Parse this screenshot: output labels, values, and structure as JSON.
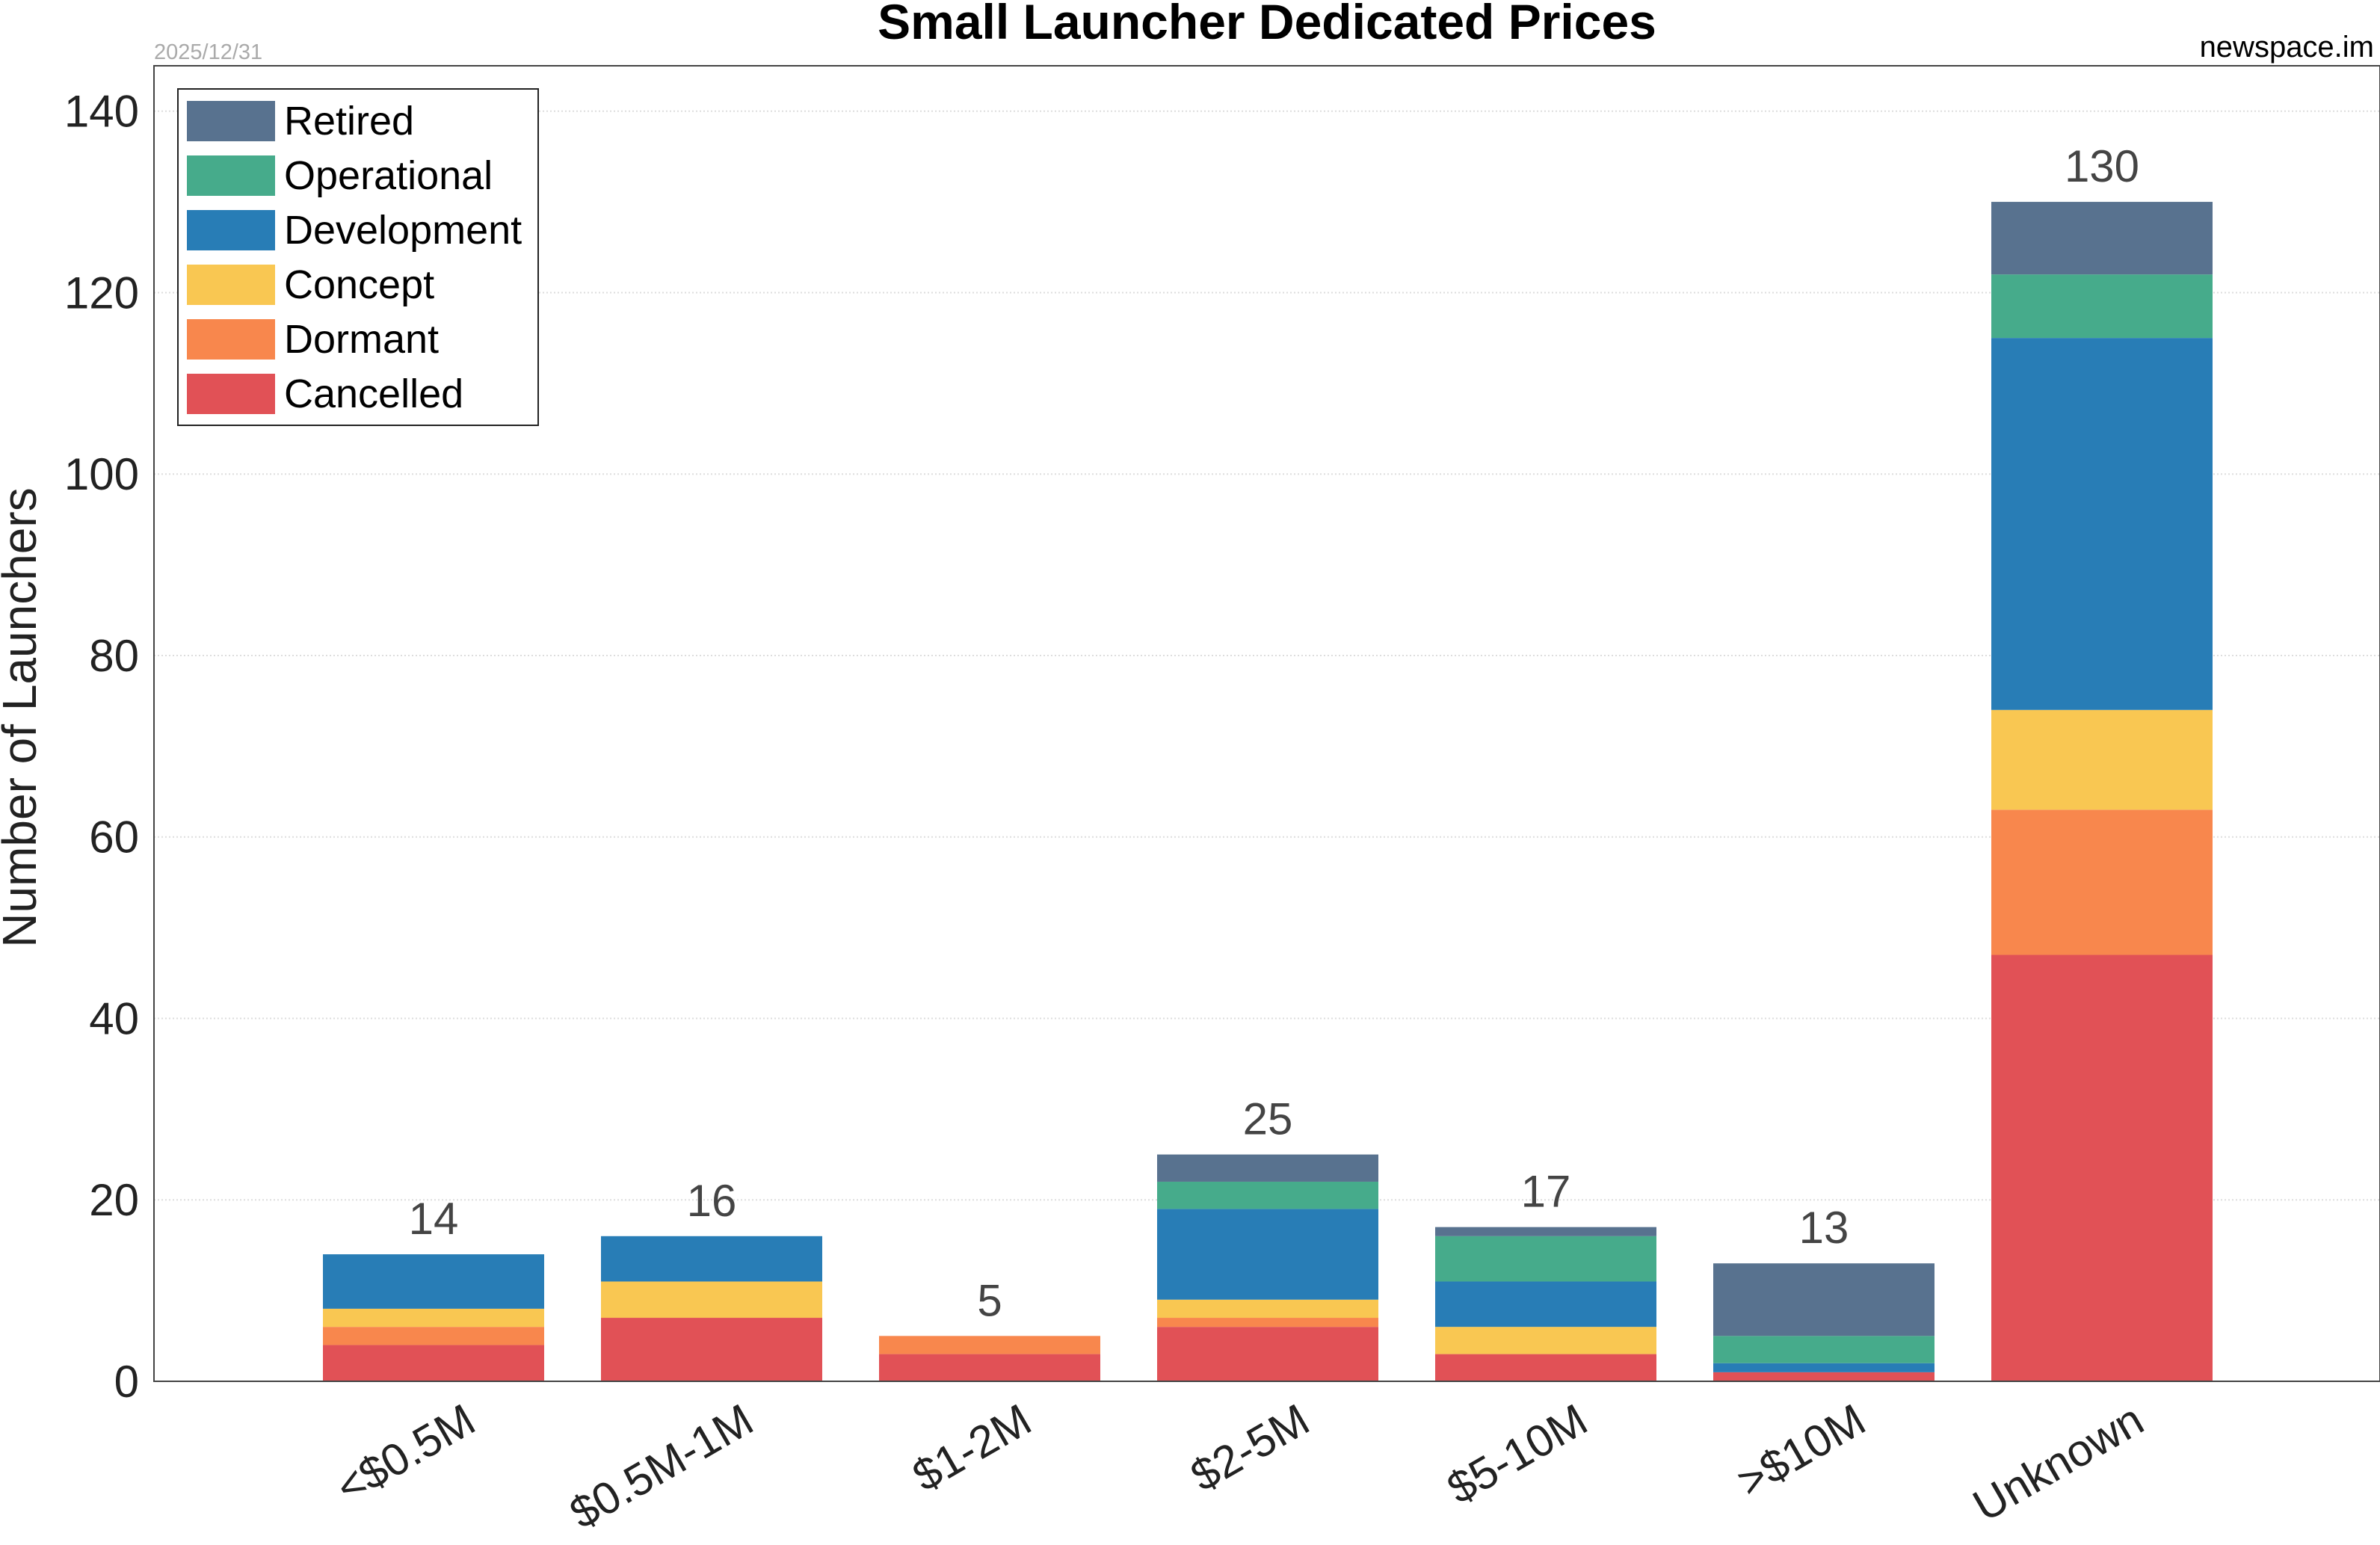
{
  "chart_data": {
    "type": "bar",
    "stacked": true,
    "title": "Small Launcher Dedicated Prices",
    "date": "2025/12/31",
    "source": "newspace.im",
    "xlabel": "",
    "ylabel": "Number of Launchers",
    "ylim": [
      0,
      145
    ],
    "yticks": [
      0,
      20,
      40,
      60,
      80,
      100,
      120,
      140
    ],
    "grid": true,
    "legend_position": "top-left",
    "categories": [
      "<$0.5M",
      "$0.5M-1M",
      "$1-2M",
      "$2-5M",
      "$5-10M",
      ">$10M",
      "Unknown"
    ],
    "totals": [
      14,
      16,
      5,
      25,
      17,
      13,
      130
    ],
    "series": [
      {
        "name": "Cancelled",
        "color": "#e15156",
        "values": [
          4,
          7,
          3,
          6,
          3,
          1,
          47
        ]
      },
      {
        "name": "Dormant",
        "color": "#f8874d",
        "values": [
          2,
          0,
          2,
          1,
          0,
          0,
          16
        ]
      },
      {
        "name": "Concept",
        "color": "#f9c752",
        "values": [
          2,
          4,
          0,
          2,
          3,
          0,
          11
        ]
      },
      {
        "name": "Development",
        "color": "#287db6",
        "values": [
          6,
          5,
          0,
          10,
          5,
          1,
          41
        ]
      },
      {
        "name": "Operational",
        "color": "#46ab8b",
        "values": [
          0,
          0,
          0,
          3,
          5,
          3,
          7
        ]
      },
      {
        "name": "Retired",
        "color": "#58728f",
        "values": [
          0,
          0,
          0,
          3,
          1,
          8,
          8
        ]
      }
    ]
  }
}
